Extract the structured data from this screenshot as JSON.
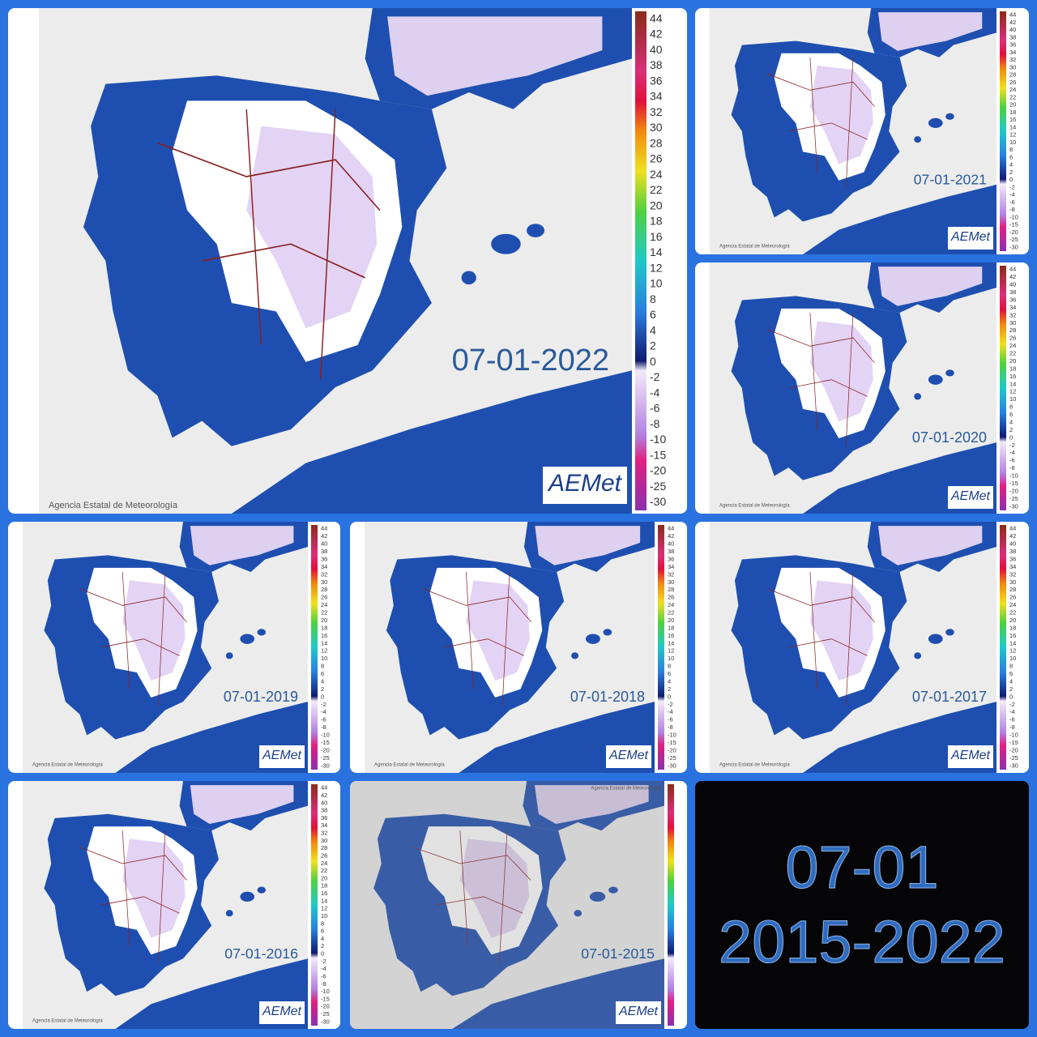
{
  "panels": [
    {
      "date": "07-01-2022"
    },
    {
      "date": "07-01-2021"
    },
    {
      "date": "07-01-2020"
    },
    {
      "date": "07-01-2019"
    },
    {
      "date": "07-01-2018"
    },
    {
      "date": "07-01-2017"
    },
    {
      "date": "07-01-2016"
    },
    {
      "date": "07-01-2015"
    }
  ],
  "legend": {
    "labels": [
      44,
      42,
      40,
      38,
      36,
      34,
      32,
      30,
      28,
      26,
      24,
      22,
      20,
      18,
      16,
      14,
      12,
      10,
      8,
      6,
      4,
      2,
      0,
      -2,
      -4,
      -6,
      -8,
      -10,
      -15,
      -20,
      -25,
      -30
    ]
  },
  "credit": "Agencia Estatal de Meteorología",
  "logo": "AEMet",
  "summary": {
    "line1": "07-01",
    "line2": "2015-2022"
  }
}
